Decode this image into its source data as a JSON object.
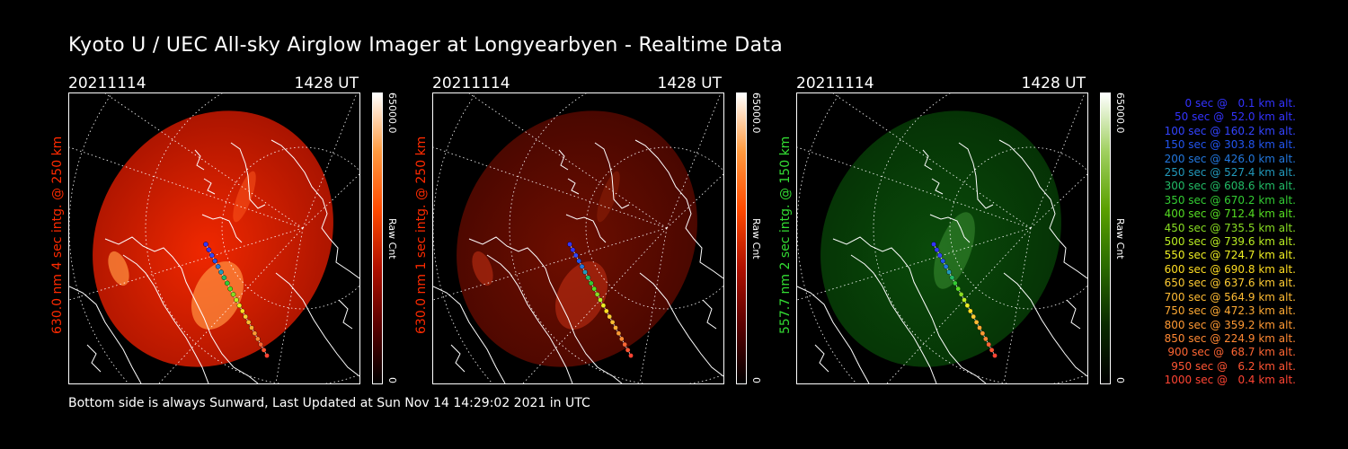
{
  "title": "Kyoto U / UEC All-sky Airglow Imager at Longyearbyen - Realtime Data",
  "footer": "Bottom side is always Sunward, Last Updated at Sun Nov 14 14:29:02 2021 in UTC",
  "panels": [
    {
      "date": "20211114",
      "time": "1428 UT",
      "side_label": "630.0 nm 4 sec intg. @ 250 km",
      "label_color": "#ff2a00",
      "colorbar_max": "65000.0",
      "colorbar_min": "0",
      "colorbar_unit": "Raw Cnt",
      "theme": "red",
      "brightness": 1.0
    },
    {
      "date": "20211114",
      "time": "1428 UT",
      "side_label": "630.0 nm 1 sec intg. @ 250 km",
      "label_color": "#ff2a00",
      "colorbar_max": "65000.0",
      "colorbar_min": "0",
      "colorbar_unit": "Raw Cnt",
      "theme": "red",
      "brightness": 0.35
    },
    {
      "date": "20211114",
      "time": "1428 UT",
      "side_label": "557.7 nm 2 sec intg. @ 150 km",
      "label_color": "#33dd33",
      "colorbar_max": "65000.0",
      "colorbar_min": "0",
      "colorbar_unit": "Raw Cnt",
      "theme": "green",
      "brightness": 0.5
    }
  ],
  "legend": [
    {
      "text": "0 sec @   0.1 km alt.",
      "color": "#3333ff"
    },
    {
      "text": "50 sec @  52.0 km alt.",
      "color": "#3333ff"
    },
    {
      "text": "100 sec @ 160.2 km alt.",
      "color": "#3344ff"
    },
    {
      "text": "150 sec @ 303.8 km alt.",
      "color": "#2255ee"
    },
    {
      "text": "200 sec @ 426.0 km alt.",
      "color": "#2277dd"
    },
    {
      "text": "250 sec @ 527.4 km alt.",
      "color": "#2299bb"
    },
    {
      "text": "300 sec @ 608.6 km alt.",
      "color": "#22bb66"
    },
    {
      "text": "350 sec @ 670.2 km alt.",
      "color": "#33cc33"
    },
    {
      "text": "400 sec @ 712.4 km alt.",
      "color": "#55dd22"
    },
    {
      "text": "450 sec @ 735.5 km alt.",
      "color": "#88dd22"
    },
    {
      "text": "500 sec @ 739.6 km alt.",
      "color": "#bbee22"
    },
    {
      "text": "550 sec @ 724.7 km alt.",
      "color": "#eeee22"
    },
    {
      "text": "600 sec @ 690.8 km alt.",
      "color": "#ffdd22"
    },
    {
      "text": "650 sec @ 637.6 km alt.",
      "color": "#ffcc33"
    },
    {
      "text": "700 sec @ 564.9 km alt.",
      "color": "#ffbb33"
    },
    {
      "text": "750 sec @ 472.3 km alt.",
      "color": "#ffaa33"
    },
    {
      "text": "800 sec @ 359.2 km alt.",
      "color": "#ff9933"
    },
    {
      "text": "850 sec @ 224.9 km alt.",
      "color": "#ff8833"
    },
    {
      "text": "900 sec @  68.7 km alt.",
      "color": "#ff6633"
    },
    {
      "text": "950 sec @   6.2 km alt.",
      "color": "#ff5533"
    },
    {
      "text": "1000 sec @   0.4 km alt.",
      "color": "#ff4433"
    }
  ]
}
